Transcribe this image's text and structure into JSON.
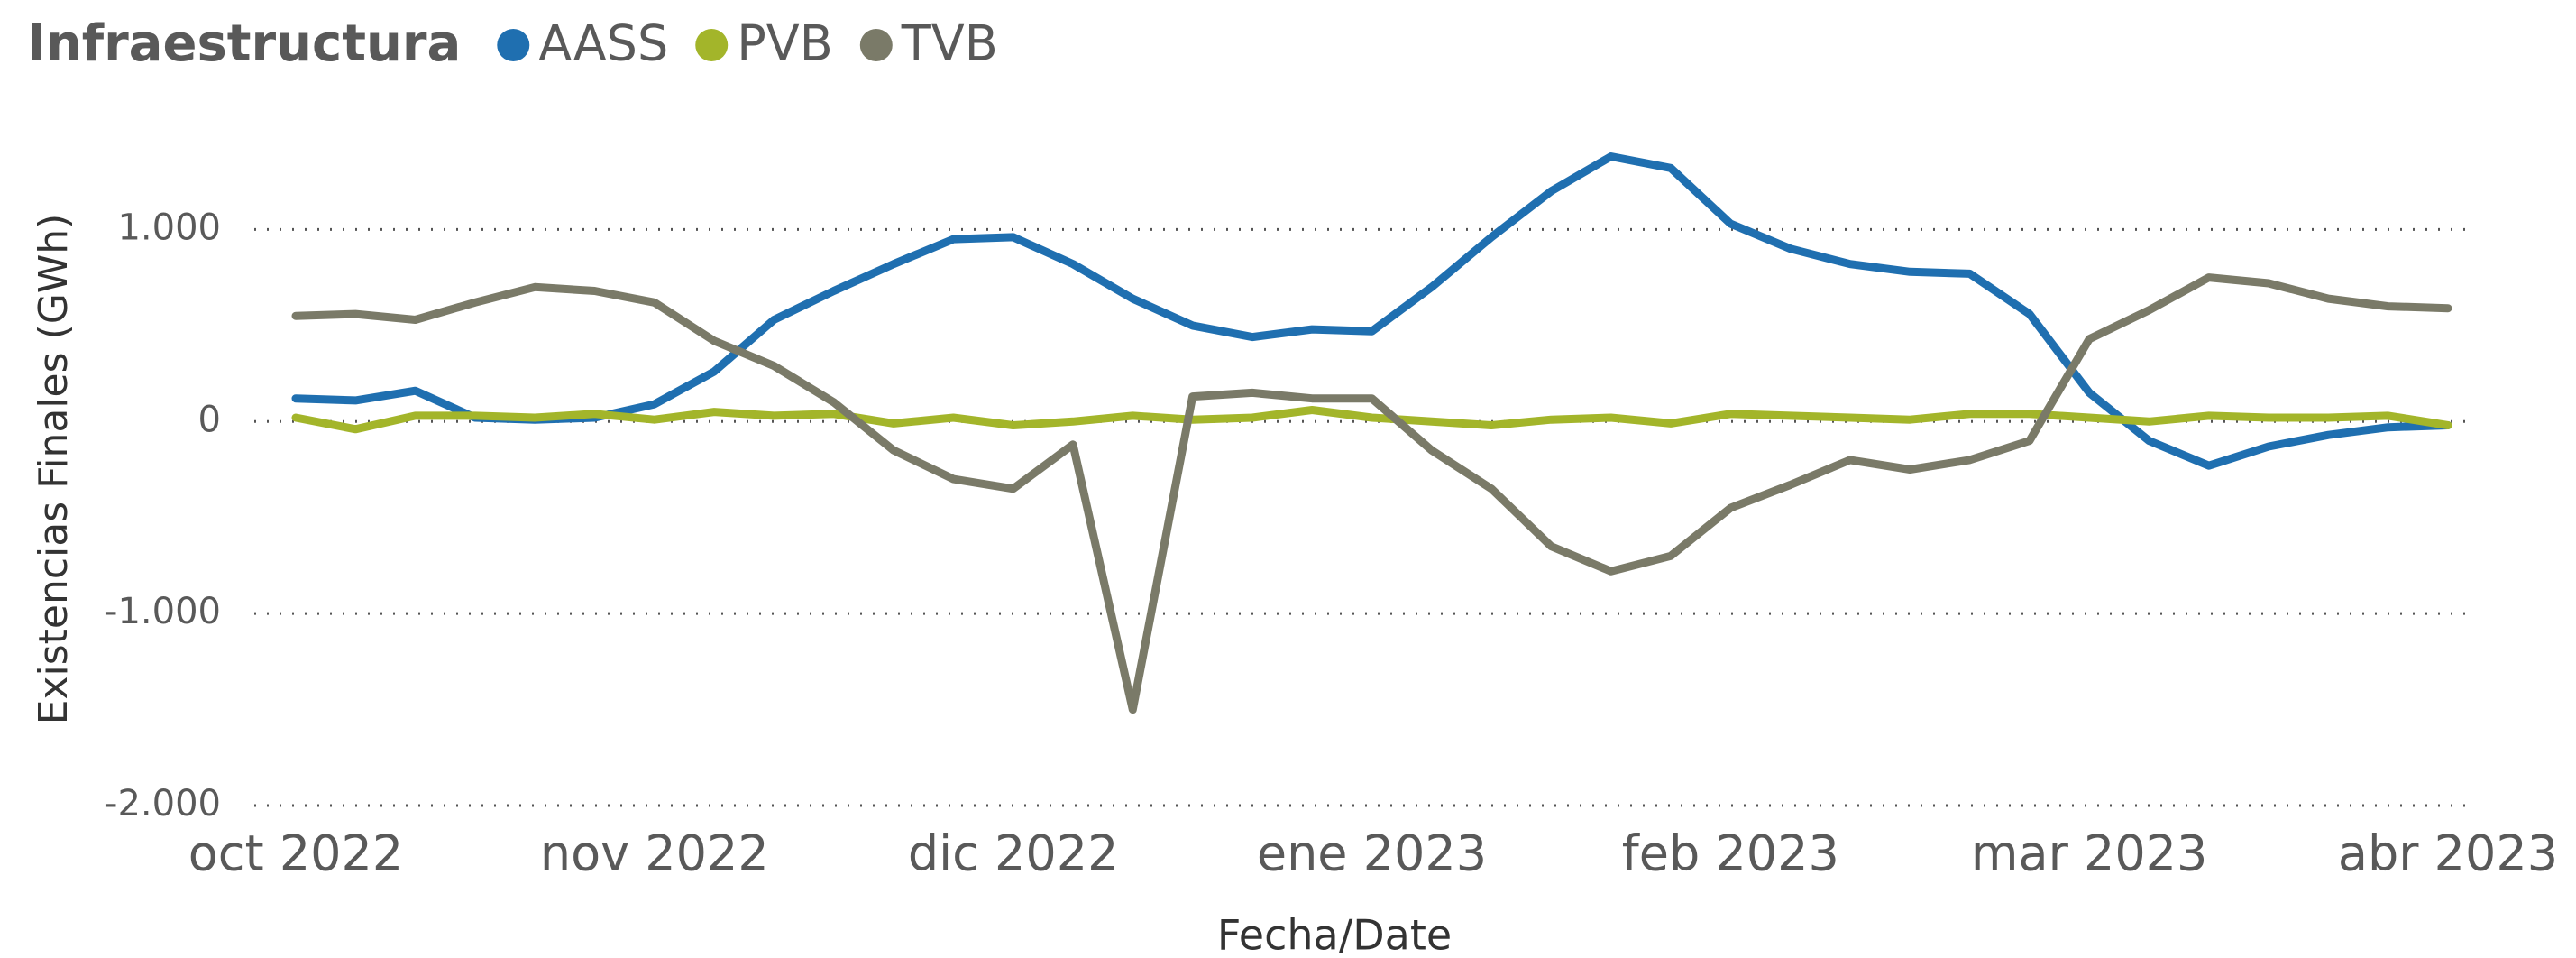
{
  "chart_data": {
    "type": "line",
    "legend_title": "Infraestructura",
    "legend_position": "top-left",
    "xlabel": "Fecha/Date",
    "ylabel": "Existencias Finales (GWh)",
    "categories": [
      "oct 2022",
      null,
      null,
      null,
      null,
      null,
      "nov 2022",
      null,
      null,
      null,
      null,
      null,
      "dic 2022",
      null,
      null,
      null,
      null,
      null,
      "ene 2023",
      null,
      null,
      null,
      null,
      null,
      "feb 2023",
      null,
      null,
      null,
      null,
      null,
      "mar 2023",
      null,
      null,
      null,
      null,
      null,
      "abr 2023"
    ],
    "ylim": [
      -2000,
      1500
    ],
    "yticks": [
      {
        "value": -2000,
        "label": "-2.000"
      },
      {
        "value": -1000,
        "label": "-1.000"
      },
      0,
      {
        "value": 1000,
        "label": "1.000"
      }
    ],
    "grid": true,
    "series": [
      {
        "name": "AASS",
        "color": "#1f6fb0",
        "values": [
          120,
          110,
          160,
          20,
          10,
          20,
          90,
          260,
          530,
          680,
          820,
          950,
          960,
          820,
          640,
          500,
          440,
          480,
          470,
          700,
          960,
          1200,
          1380,
          1320,
          1030,
          900,
          820,
          780,
          770,
          560,
          150,
          -100,
          -230,
          -130,
          -70,
          -30,
          -20
        ]
      },
      {
        "name": "PVB",
        "color": "#a3b52a",
        "values": [
          20,
          -40,
          30,
          30,
          20,
          40,
          10,
          50,
          30,
          40,
          -10,
          20,
          -20,
          0,
          30,
          10,
          20,
          60,
          20,
          0,
          -20,
          10,
          20,
          -10,
          40,
          30,
          20,
          10,
          40,
          40,
          20,
          0,
          30,
          20,
          20,
          30,
          -20
        ]
      },
      {
        "name": "TVB",
        "color": "#7a7a68",
        "values": [
          550,
          560,
          530,
          620,
          700,
          680,
          620,
          420,
          290,
          100,
          -150,
          -300,
          -350,
          -120,
          -1500,
          130,
          150,
          120,
          120,
          -150,
          -350,
          -650,
          -780,
          -700,
          -450,
          -330,
          -200,
          -250,
          -200,
          -100,
          430,
          580,
          750,
          720,
          640,
          600,
          590
        ]
      }
    ]
  }
}
